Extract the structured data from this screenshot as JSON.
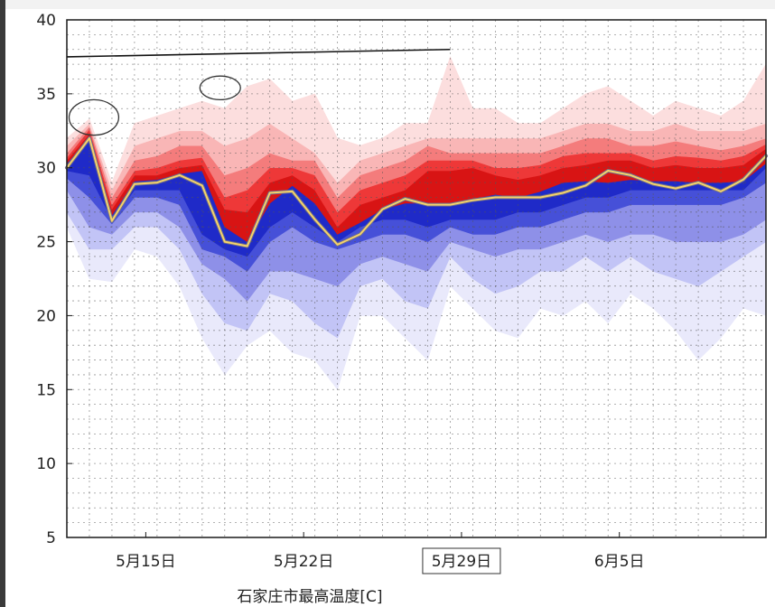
{
  "chart_data": {
    "type": "area",
    "xlabel": "石家庄市最高温度[C]",
    "ylim": [
      5,
      40
    ],
    "yticks": [
      5,
      10,
      15,
      20,
      25,
      30,
      35,
      40
    ],
    "ytick_labels": [
      "5",
      "10",
      "15",
      "20",
      "25",
      "30",
      "35",
      "40"
    ],
    "xlim": [
      11,
      42
    ],
    "xticks": [
      {
        "day": 14.5,
        "label": "5月15日"
      },
      {
        "day": 21.5,
        "label": "5月22日"
      },
      {
        "day": 28.5,
        "label": "5月29日",
        "boxed": true
      },
      {
        "day": 35.5,
        "label": "6月5日"
      }
    ],
    "x_days": [
      11,
      12,
      13,
      14,
      15,
      16,
      17,
      18,
      19,
      20,
      21,
      22,
      23,
      24,
      25,
      26,
      27,
      28,
      29,
      30,
      31,
      32,
      33,
      34,
      35,
      36,
      37,
      38,
      39,
      40,
      41,
      42
    ],
    "grid": "dashed",
    "bands": [
      {
        "name": "",
        "color": "#e9e9fb",
        "upper": [
          31,
          32.8,
          27.5,
          30,
          30,
          30.5,
          31,
          27,
          26.5,
          28.5,
          29.5,
          28.5,
          26.5,
          27,
          28,
          28.5,
          28.5,
          28.5,
          29,
          29.5,
          28.8,
          29.5,
          30,
          30,
          29.8,
          30,
          30,
          30,
          30,
          30,
          30,
          31.5
        ],
        "lower": [
          26,
          22.5,
          22.3,
          24.5,
          24,
          22,
          18.5,
          16,
          18,
          19,
          17.5,
          17,
          15,
          20,
          20,
          18.5,
          17,
          22,
          20.5,
          19,
          18.5,
          20.5,
          20,
          21,
          19.5,
          21.5,
          20.5,
          19,
          17,
          18.5,
          20.5,
          20
        ]
      },
      {
        "name": "",
        "color": "#c2c4f6",
        "upper": [
          31,
          32.5,
          27.3,
          29.8,
          29.7,
          30.2,
          30.5,
          26.7,
          26,
          28.2,
          29.2,
          28.3,
          26.3,
          26.8,
          27.8,
          28.3,
          28.3,
          28.3,
          28.8,
          29.2,
          28.6,
          29.3,
          29.8,
          29.8,
          29.6,
          29.8,
          29.8,
          29.8,
          29.8,
          29.8,
          29.8,
          31.2
        ],
        "lower": [
          27,
          24.5,
          24.5,
          26,
          26,
          24.5,
          21.5,
          19.5,
          19,
          21.5,
          21,
          19.5,
          18.5,
          22,
          22.5,
          21,
          20.5,
          24,
          22.5,
          21.5,
          22,
          23,
          23,
          24,
          23,
          24,
          23,
          22.5,
          22,
          23,
          24,
          25
        ]
      },
      {
        "name": "",
        "color": "#8e90e8",
        "upper": [
          30.8,
          32.3,
          27,
          29.5,
          29.5,
          30,
          30.2,
          26.5,
          25.6,
          28,
          29,
          28,
          26,
          26.6,
          27.5,
          28,
          28,
          28,
          28.5,
          29,
          28.4,
          29,
          29.5,
          29.5,
          29.4,
          29.6,
          29.5,
          29.5,
          29.5,
          29.5,
          29.5,
          30.9
        ],
        "lower": [
          28.5,
          26,
          25.5,
          27,
          27,
          26,
          23.5,
          22.5,
          21,
          23,
          23,
          22.5,
          22,
          23.5,
          24,
          23.5,
          23,
          25,
          24.5,
          24,
          24.5,
          24.5,
          25,
          25.5,
          25,
          25.5,
          25.5,
          25,
          25,
          25,
          25.5,
          26.5
        ]
      },
      {
        "name": "",
        "color": "#4650d8",
        "upper": [
          30.5,
          32.2,
          26.9,
          29.3,
          29.3,
          29.8,
          30,
          26.3,
          25.3,
          27.8,
          28.9,
          27.8,
          25.8,
          26.5,
          27.3,
          27.8,
          27.8,
          27.8,
          28.2,
          28.7,
          28.2,
          28.7,
          29.2,
          29.3,
          29.2,
          29.4,
          29.3,
          29.3,
          29.2,
          29.2,
          29.3,
          30.5
        ],
        "lower": [
          29.3,
          28,
          26.2,
          28,
          28,
          27.5,
          24.5,
          24,
          23,
          25,
          26,
          25,
          24.5,
          25,
          25.5,
          25.5,
          25,
          26,
          25.5,
          25.5,
          26,
          26,
          26.5,
          27,
          27,
          27.5,
          27.5,
          27.5,
          27.5,
          27.5,
          28,
          29
        ]
      },
      {
        "name": "",
        "color": "#1f2ac8",
        "upper": [
          30.3,
          32,
          26.8,
          29.1,
          29.2,
          29.6,
          29.8,
          26,
          25,
          27.6,
          28.8,
          27.6,
          25.5,
          26.3,
          27.2,
          27.6,
          27.6,
          27.6,
          27.9,
          28.2,
          28,
          28.4,
          29,
          29.1,
          29,
          29.2,
          29.1,
          29.1,
          29,
          29,
          29.1,
          30.3
        ],
        "lower": [
          29.8,
          29.5,
          26.5,
          28.5,
          28.5,
          28.5,
          25.5,
          24.5,
          24,
          26,
          27,
          26,
          25,
          26,
          26.5,
          26.5,
          26,
          26.5,
          26.5,
          26.5,
          27,
          27,
          27.5,
          28,
          28,
          28.5,
          28.5,
          28.5,
          28.5,
          28.5,
          28.5,
          30
        ]
      },
      {
        "name": "",
        "color": "#d81414",
        "upper": [
          30.5,
          32.3,
          27.2,
          29.5,
          29.5,
          30,
          30.2,
          27.2,
          27,
          29,
          29.5,
          28.5,
          26,
          27.5,
          28,
          28.5,
          29.8,
          29.8,
          30,
          29.5,
          29.2,
          29.5,
          30,
          30.2,
          30.5,
          30.5,
          30,
          30.2,
          30,
          30,
          30.2,
          31.3
        ],
        "lower": [
          30.3,
          32,
          26.8,
          29.1,
          29.2,
          29.6,
          29.8,
          26,
          25,
          27.6,
          28.8,
          27.6,
          25.5,
          26.3,
          27.2,
          27.6,
          27.6,
          27.6,
          27.9,
          28.2,
          28,
          28.4,
          29,
          29.1,
          29,
          29.2,
          29.1,
          29.1,
          29,
          29,
          29.1,
          30.3
        ]
      },
      {
        "name": "",
        "color": "#ee3838",
        "upper": [
          30.7,
          32.6,
          27.5,
          29.8,
          30,
          30.5,
          30.7,
          28,
          28.5,
          30,
          30,
          29.5,
          27,
          28.5,
          29,
          29.5,
          30.5,
          30.5,
          30.5,
          30,
          30,
          30.2,
          30.8,
          31,
          31,
          31,
          30.5,
          30.8,
          30.7,
          30.5,
          30.8,
          31.6
        ],
        "lower": [
          30.5,
          32.3,
          27.2,
          29.5,
          29.5,
          30,
          30.2,
          27.2,
          27,
          29,
          29.5,
          28.5,
          26,
          27.5,
          28,
          28.5,
          29.8,
          29.8,
          30,
          29.5,
          29.2,
          29.5,
          30,
          30.2,
          30.5,
          30.5,
          30,
          30.2,
          30,
          30,
          30.2,
          31.3
        ]
      },
      {
        "name": "",
        "color": "#f47c7c",
        "upper": [
          31,
          32.8,
          28,
          30.5,
          30.8,
          31.5,
          31.5,
          29.5,
          30,
          31,
          30.5,
          30.5,
          28,
          29.5,
          30,
          30.5,
          31.5,
          31,
          31,
          31,
          31,
          31,
          31.5,
          32,
          32,
          31.5,
          31.5,
          31.8,
          31.5,
          31.2,
          31.5,
          32
        ]
      },
      {
        "name": "",
        "color": "#f9b6b6",
        "upper": [
          31.5,
          33,
          28.5,
          31.5,
          32,
          32.5,
          32.5,
          31.5,
          32,
          33,
          32,
          31,
          29,
          30.5,
          31,
          31.5,
          32,
          32,
          32,
          32,
          32,
          32,
          32.5,
          33,
          33,
          32.5,
          32.5,
          33,
          32.5,
          32.5,
          32.5,
          33
        ]
      },
      {
        "name": "",
        "color": "#fcdede",
        "upper": [
          32,
          33.3,
          29,
          33,
          33.5,
          34,
          34.5,
          34,
          35.5,
          36,
          34.5,
          35,
          32,
          31.5,
          32,
          33,
          33,
          37.5,
          34,
          34,
          33,
          33,
          34,
          35,
          35.5,
          34.5,
          33.5,
          34.5,
          34,
          33.5,
          34.5,
          37
        ]
      }
    ],
    "median": {
      "name": "",
      "color": "#f5d26a",
      "values": [
        30,
        32,
        26.4,
        28.9,
        29,
        29.5,
        28.8,
        25,
        24.7,
        28.3,
        28.4,
        26.5,
        24.8,
        25.5,
        27.2,
        27.9,
        27.5,
        27.5,
        27.8,
        28,
        28,
        28,
        28.3,
        28.8,
        29.8,
        29.5,
        28.9,
        28.6,
        29,
        28.4,
        29.2,
        30.8
      ]
    },
    "annotations": [
      {
        "type": "trend-line",
        "x": [
          11,
          28
        ],
        "y": [
          37.5,
          38
        ]
      },
      {
        "type": "ellipse",
        "cx": 12.2,
        "cy": 33.4,
        "rx": 1.1,
        "ry": 1.2
      },
      {
        "type": "ellipse",
        "cx": 17.8,
        "cy": 35.4,
        "rx": 0.9,
        "ry": 0.8
      }
    ]
  }
}
